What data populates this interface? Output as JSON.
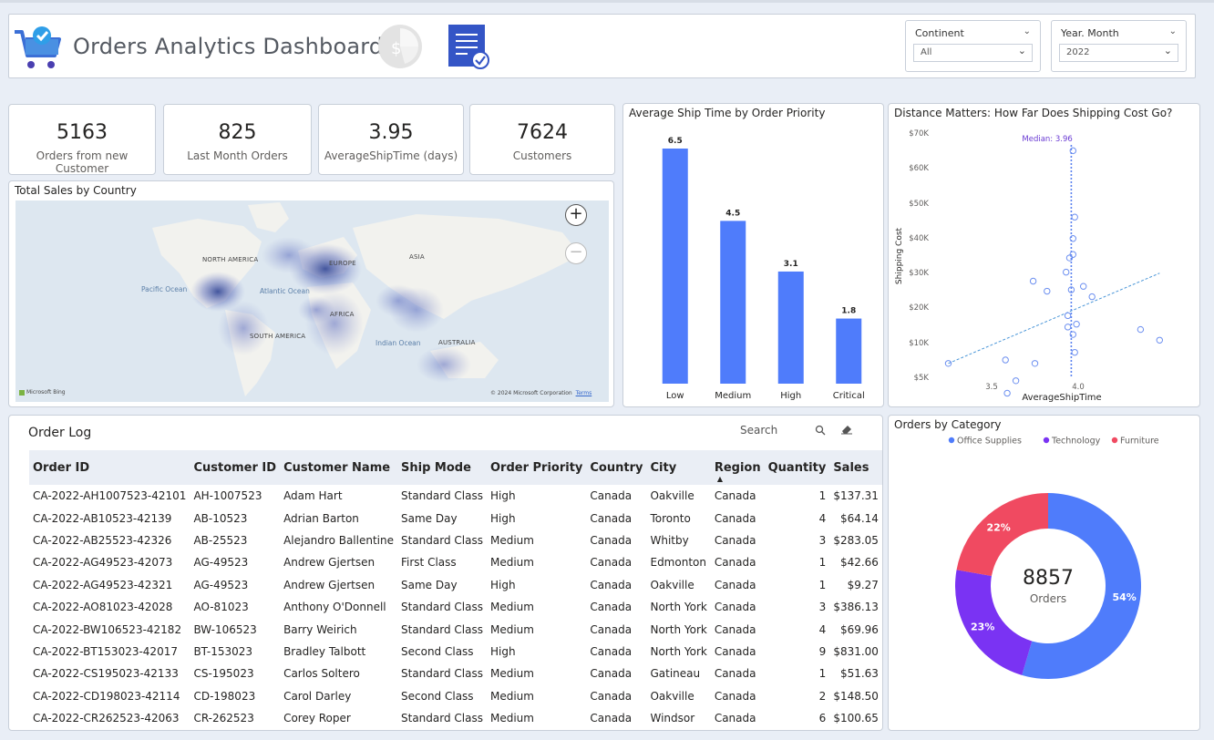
{
  "header": {
    "title": "Orders Analytics Dashboard",
    "continent_label": "Continent",
    "continent_value": "All",
    "year_month_label": "Year. Month",
    "year_month_value": "2022"
  },
  "kpis": [
    {
      "value": "5163",
      "caption": "Orders from new Customer"
    },
    {
      "value": "825",
      "caption": "Last Month Orders"
    },
    {
      "value": "3.95",
      "caption": "AverageShipTime (days)"
    },
    {
      "value": "7624",
      "caption": "Customers"
    }
  ],
  "map": {
    "title": "Total Sales by Country",
    "labels": {
      "north_america": "NORTH AMERICA",
      "south_america": "SOUTH AMERICA",
      "europe": "EUROPE",
      "africa": "AFRICA",
      "asia": "ASIA",
      "australia": "AUSTRALIA",
      "pacific": "Pacific Ocean",
      "atlantic": "Atlantic Ocean",
      "indian": "Indian Ocean"
    },
    "attribution": "Microsoft Bing",
    "copyright": "© 2024 Microsoft Corporation",
    "terms": "Terms",
    "zoom_in": "+",
    "zoom_out": "−"
  },
  "chart_data": [
    {
      "type": "bar",
      "title": "Average Ship Time by Order Priority",
      "categories": [
        "Low",
        "Medium",
        "High",
        "Critical"
      ],
      "values": [
        6.5,
        4.5,
        3.1,
        1.8
      ],
      "data_labels": [
        "6.5",
        "4.5",
        "3.1",
        "1.8"
      ],
      "ylim": [
        0,
        7
      ],
      "color": "#4f7cfb"
    },
    {
      "type": "scatter",
      "title": "Distance Matters: How Far Does Shipping Cost Go?",
      "xlabel": "AverageShipTime",
      "ylabel": "Shipping Cost",
      "x_ticks": [
        "3.5",
        "4.0"
      ],
      "y_ticks": [
        "$5K",
        "$10K",
        "$20K",
        "$30K",
        "$40K",
        "$50K",
        "$60K",
        "$70K"
      ],
      "median_label": "Median: 3.96",
      "median_x": 3.96,
      "xlim": [
        3.2,
        4.5
      ],
      "ylim": [
        2000,
        70000
      ],
      "points": [
        {
          "x": 3.25,
          "y": 7000
        },
        {
          "x": 3.58,
          "y": 7500
        },
        {
          "x": 3.59,
          "y": 2700
        },
        {
          "x": 3.64,
          "y": 4500
        },
        {
          "x": 3.75,
          "y": 7000
        },
        {
          "x": 3.74,
          "y": 27500
        },
        {
          "x": 3.82,
          "y": 24600
        },
        {
          "x": 3.93,
          "y": 30100
        },
        {
          "x": 3.94,
          "y": 14400
        },
        {
          "x": 3.94,
          "y": 17600
        },
        {
          "x": 3.95,
          "y": 34200
        },
        {
          "x": 3.96,
          "y": 25000
        },
        {
          "x": 3.97,
          "y": 35200
        },
        {
          "x": 3.97,
          "y": 39800
        },
        {
          "x": 3.97,
          "y": 12300
        },
        {
          "x": 3.98,
          "y": 8600
        },
        {
          "x": 3.98,
          "y": 46000
        },
        {
          "x": 3.97,
          "y": 64900
        },
        {
          "x": 3.99,
          "y": 15200
        },
        {
          "x": 4.03,
          "y": 26000
        },
        {
          "x": 4.08,
          "y": 23000
        },
        {
          "x": 4.36,
          "y": 13700
        },
        {
          "x": 4.47,
          "y": 10700
        }
      ],
      "trend": [
        {
          "x": 3.25,
          "y": 7000
        },
        {
          "x": 4.47,
          "y": 29800
        }
      ],
      "color": "#4f7cfb"
    },
    {
      "type": "pie",
      "title": "Orders by Category",
      "center_value": "8857",
      "center_label": "Orders",
      "categories": [
        "Office Supplies",
        "Technology",
        "Furniture"
      ],
      "values": [
        54,
        23,
        22
      ],
      "data_labels": [
        "54%",
        "23%",
        "22%"
      ],
      "colors": [
        "#4f7cfb",
        "#7a33f3",
        "#f04a61"
      ]
    }
  ],
  "order_log": {
    "title": "Order Log",
    "search_placeholder": "Search",
    "columns": [
      "Order ID",
      "Customer ID",
      "Customer Name",
      "Ship Mode",
      "Order Priority",
      "Country",
      "City",
      "Region",
      "Quantity",
      "Sales"
    ],
    "rows": [
      [
        "CA-2022-AH1007523-42101",
        "AH-1007523",
        "Adam Hart",
        "Standard Class",
        "High",
        "Canada",
        "Oakville",
        "Canada",
        "1",
        "$137.31"
      ],
      [
        "CA-2022-AB10523-42139",
        "AB-10523",
        "Adrian Barton",
        "Same Day",
        "High",
        "Canada",
        "Toronto",
        "Canada",
        "4",
        "$64.14"
      ],
      [
        "CA-2022-AB25523-42326",
        "AB-25523",
        "Alejandro Ballentine",
        "Standard Class",
        "Medium",
        "Canada",
        "Whitby",
        "Canada",
        "3",
        "$283.05"
      ],
      [
        "CA-2022-AG49523-42073",
        "AG-49523",
        "Andrew Gjertsen",
        "First Class",
        "Medium",
        "Canada",
        "Edmonton",
        "Canada",
        "1",
        "$42.66"
      ],
      [
        "CA-2022-AG49523-42321",
        "AG-49523",
        "Andrew Gjertsen",
        "Same Day",
        "High",
        "Canada",
        "Oakville",
        "Canada",
        "1",
        "$9.27"
      ],
      [
        "CA-2022-AO81023-42028",
        "AO-81023",
        "Anthony O'Donnell",
        "Standard Class",
        "Medium",
        "Canada",
        "North York",
        "Canada",
        "3",
        "$386.13"
      ],
      [
        "CA-2022-BW106523-42182",
        "BW-106523",
        "Barry Weirich",
        "Standard Class",
        "Medium",
        "Canada",
        "North York",
        "Canada",
        "4",
        "$69.96"
      ],
      [
        "CA-2022-BT153023-42017",
        "BT-153023",
        "Bradley Talbott",
        "Second Class",
        "High",
        "Canada",
        "North York",
        "Canada",
        "9",
        "$831.00"
      ],
      [
        "CA-2022-CS195023-42133",
        "CS-195023",
        "Carlos Soltero",
        "Standard Class",
        "Medium",
        "Canada",
        "Gatineau",
        "Canada",
        "1",
        "$51.63"
      ],
      [
        "CA-2022-CD198023-42114",
        "CD-198023",
        "Carol Darley",
        "Second Class",
        "Medium",
        "Canada",
        "Oakville",
        "Canada",
        "2",
        "$148.50"
      ],
      [
        "CA-2022-CR262523-42063",
        "CR-262523",
        "Corey Roper",
        "Standard Class",
        "Medium",
        "Canada",
        "Windsor",
        "Canada",
        "6",
        "$100.65"
      ]
    ]
  }
}
